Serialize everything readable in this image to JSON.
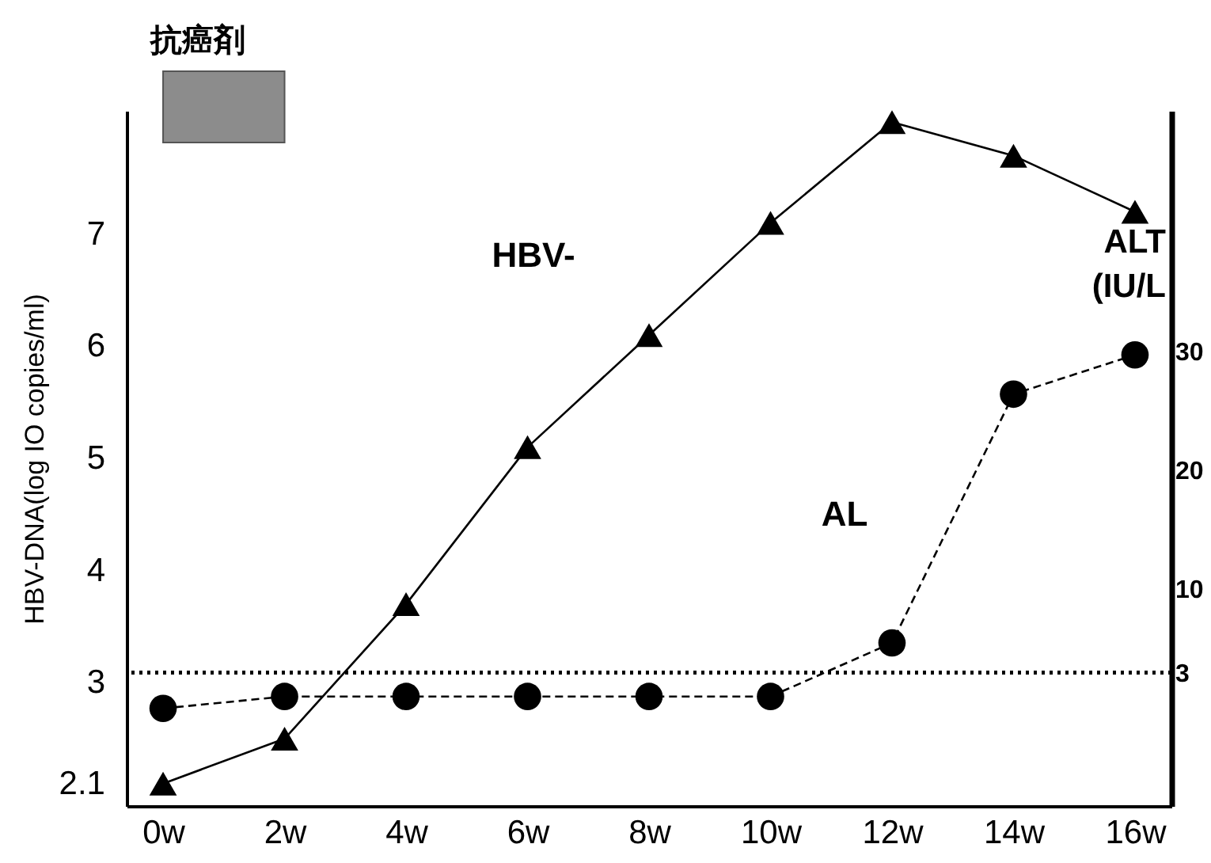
{
  "chart_data": {
    "type": "line",
    "ylabel": "HBV-DNA(log IO copies/ml)",
    "y2label": "ALT\n(IU/L",
    "categories": [
      "0w",
      "2w",
      "4w",
      "6w",
      "8w",
      "10w",
      "12w",
      "14w",
      "16w"
    ],
    "series": [
      {
        "name": "HBV-",
        "color": "#000000",
        "marker": "triangle",
        "line_style": "solid",
        "values": [
          2.1,
          2.5,
          3.7,
          5.1,
          6.1,
          7.1,
          8.0,
          7.7,
          7.2
        ]
      },
      {
        "name": "AL",
        "color": "#000000",
        "marker": "circle",
        "line_style": "dashed",
        "axis": "y2",
        "values": [
          0,
          1,
          1,
          1,
          1,
          1,
          5.5,
          26.4,
          29.7
        ]
      }
    ],
    "ylim": [
      1.9,
      8.1
    ],
    "yticks": [
      2.1,
      3,
      4,
      5,
      6,
      7
    ],
    "y2lim": [
      -8.2,
      50.2
    ],
    "y2ticks": [
      3,
      10,
      20,
      30
    ],
    "ref_lines": [
      {
        "axis": "y2",
        "value": 3,
        "line_style": "dotted",
        "color": "#000000"
      }
    ],
    "bands": [
      {
        "axis": "x",
        "from": "0w",
        "to": "2w",
        "label": "抗癌剤",
        "color": "#8c8c8c"
      }
    ]
  }
}
